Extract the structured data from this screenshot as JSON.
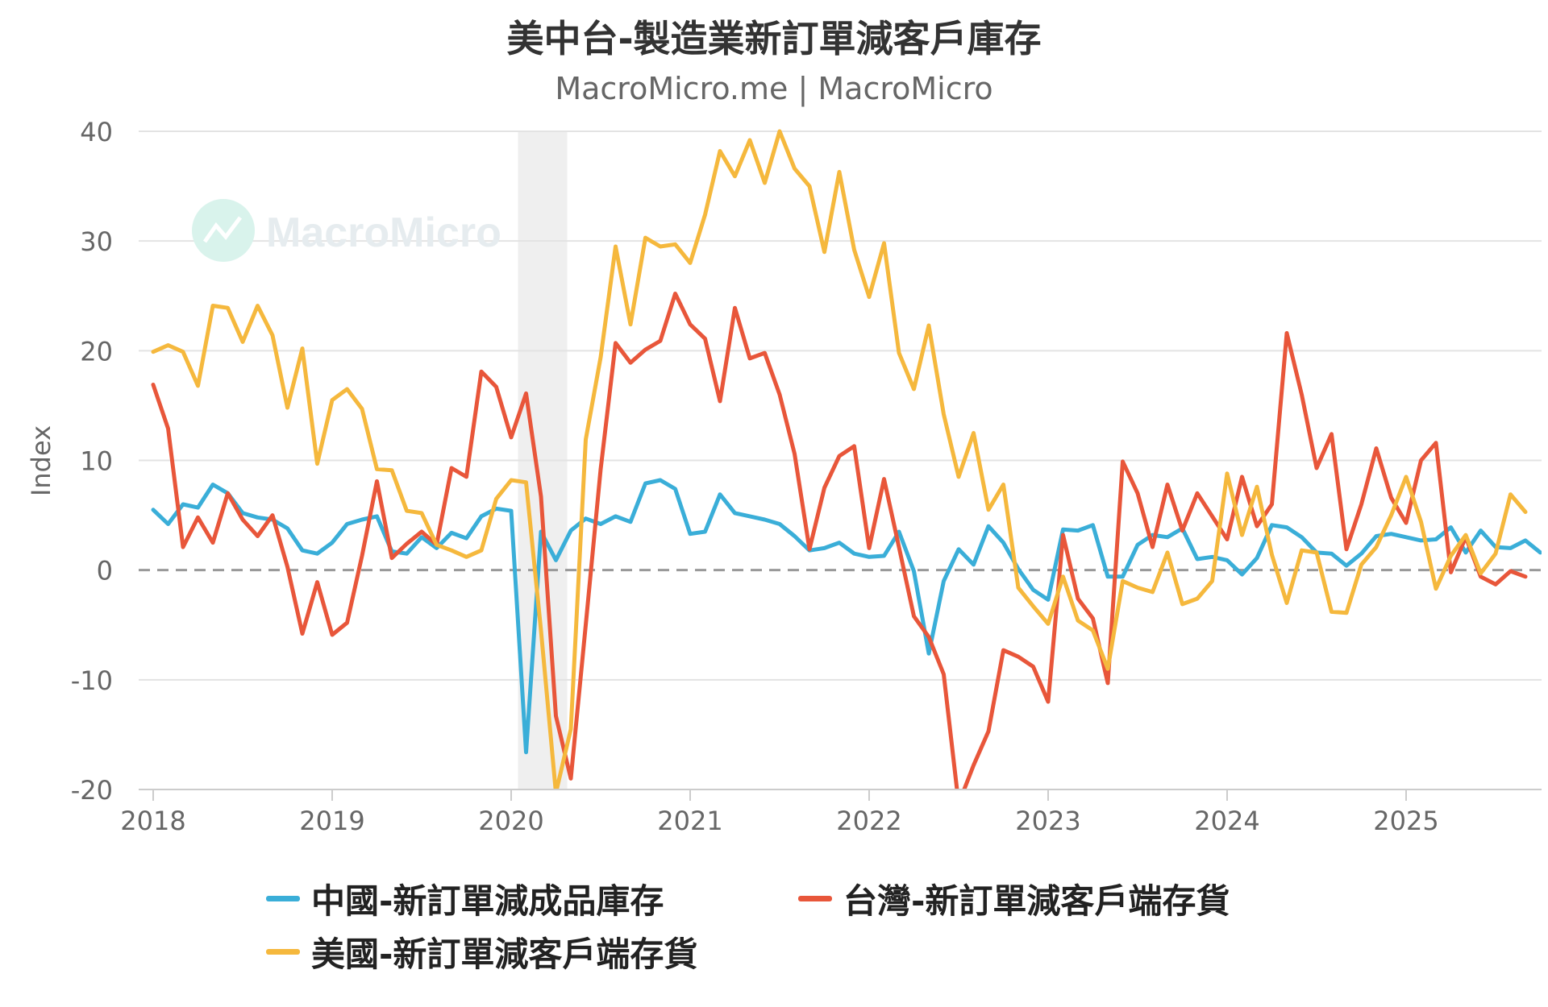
{
  "chart_data": {
    "type": "line",
    "title": "美中台-製造業新訂單減客戶庫存",
    "subtitle": "MacroMicro.me | MacroMicro",
    "watermark": "MacroMicro",
    "ylabel": "Index",
    "ylim": [
      -20,
      40
    ],
    "yticks": [
      40,
      30,
      20,
      10,
      0,
      -10,
      -20
    ],
    "xticks": [
      "2018",
      "2019",
      "2020",
      "2021",
      "2022",
      "2023",
      "2024",
      "2025"
    ],
    "x_start": "2018-01",
    "zero_line": true,
    "grid": true,
    "legend_position": "bottom",
    "shaded_ranges": [
      [
        "2020-02",
        "2020-04"
      ]
    ],
    "series": [
      {
        "name": "中國-新訂單減成品庫存",
        "color": "#3aaed8",
        "values": [
          5.5,
          4.2,
          6.0,
          5.7,
          7.8,
          7.0,
          5.2,
          4.8,
          4.6,
          3.8,
          1.8,
          1.5,
          2.5,
          4.2,
          4.6,
          4.9,
          1.7,
          1.5,
          3.0,
          2.0,
          3.4,
          2.9,
          4.9,
          5.6,
          5.4,
          -16.6,
          3.5,
          0.9,
          3.6,
          4.7,
          4.2,
          4.9,
          4.4,
          7.9,
          8.2,
          7.4,
          3.3,
          3.5,
          6.9,
          5.2,
          4.9,
          4.6,
          4.2,
          3.1,
          1.8,
          2.0,
          2.5,
          1.5,
          1.2,
          1.3,
          3.5,
          -0.1,
          -7.6,
          -1.0,
          1.9,
          0.5,
          4.0,
          2.5,
          0.1,
          -1.8,
          -2.7,
          3.7,
          3.6,
          4.1,
          -0.6,
          -0.6,
          2.3,
          3.2,
          3.0,
          3.8,
          1.0,
          1.2,
          0.9,
          -0.4,
          1.1,
          4.1,
          3.9,
          3.0,
          1.6,
          1.5,
          0.4,
          1.5,
          3.1,
          3.3,
          3.0,
          2.7,
          2.8,
          3.9,
          1.6,
          3.6,
          2.1,
          2.0,
          2.7,
          1.6
        ]
      },
      {
        "name": "台灣-新訂單減客戶端存貨",
        "color": "#e8563a",
        "values": [
          16.9,
          12.9,
          2.1,
          4.8,
          2.5,
          7.0,
          4.6,
          3.1,
          5.0,
          0.3,
          -5.8,
          -1.1,
          -5.9,
          -4.8,
          1.3,
          8.1,
          1.1,
          2.4,
          3.5,
          2.3,
          9.3,
          8.5,
          18.1,
          16.7,
          12.1,
          16.1,
          6.7,
          -13.3,
          -19.0,
          -5.0,
          9.2,
          20.7,
          18.9,
          20.1,
          20.9,
          25.2,
          22.4,
          21.1,
          15.4,
          23.9,
          19.3,
          19.8,
          16.0,
          10.6,
          1.9,
          7.5,
          10.4,
          11.3,
          2.0,
          8.3,
          2.1,
          -4.2,
          -6.1,
          -9.5,
          -21.3,
          -17.8,
          -14.7,
          -7.3,
          -7.9,
          -8.8,
          -12.0,
          3.2,
          -2.6,
          -4.4,
          -10.3,
          9.9,
          7.0,
          2.1,
          7.8,
          3.6,
          7.0,
          4.9,
          2.8,
          8.5,
          4.0,
          6.0,
          21.6,
          16.0,
          9.3,
          12.4,
          1.9,
          6.0,
          11.1,
          6.6,
          4.3,
          10.0,
          11.6,
          -0.2,
          3.0,
          -0.6,
          -1.3,
          -0.1,
          -0.6
        ]
      },
      {
        "name": "美國-新訂單減客戶端存貨",
        "color": "#f5b83d",
        "values": [
          19.9,
          20.5,
          19.9,
          16.8,
          24.1,
          23.9,
          20.8,
          24.1,
          21.4,
          14.8,
          20.2,
          9.7,
          15.5,
          16.5,
          14.7,
          9.2,
          9.1,
          5.4,
          5.2,
          2.3,
          1.8,
          1.2,
          1.8,
          6.5,
          8.2,
          8.0,
          -5.5,
          -20.3,
          -14.5,
          11.9,
          19.4,
          29.5,
          22.4,
          30.3,
          29.5,
          29.7,
          28.0,
          32.4,
          38.2,
          35.9,
          39.2,
          35.3,
          40.0,
          36.6,
          35.0,
          29.0,
          36.3,
          29.2,
          24.9,
          29.8,
          19.8,
          16.5,
          22.3,
          14.2,
          8.5,
          12.5,
          5.5,
          7.8,
          -1.6,
          -3.3,
          -4.9,
          -0.6,
          -4.6,
          -5.5,
          -9.0,
          -1.0,
          -1.6,
          -2.0,
          1.6,
          -3.1,
          -2.6,
          -1.0,
          8.8,
          3.2,
          7.6,
          1.4,
          -3.0,
          1.8,
          1.6,
          -3.8,
          -3.9,
          0.5,
          2.1,
          5.0,
          8.5,
          4.4,
          -1.7,
          1.3,
          3.2,
          -0.3,
          1.5,
          6.9,
          5.3
        ]
      }
    ]
  }
}
